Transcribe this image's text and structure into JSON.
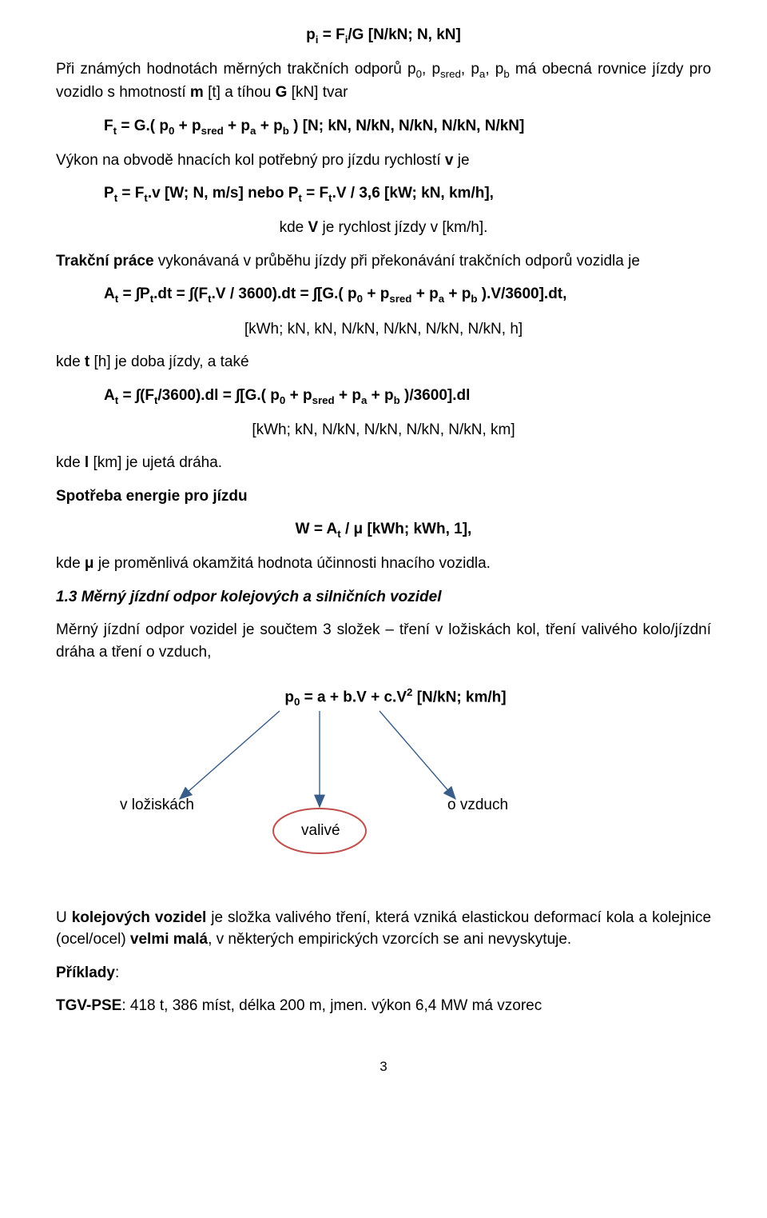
{
  "eq_top": "p<sub>i</sub> = F<sub>i</sub>/G [N/kN; N, kN]",
  "p1": "Při známých hodnotách měrných trakčních odporů p<sub>0</sub>, p<sub>sred</sub>, p<sub>a</sub>, p<sub>b</sub>  má obecná rovnice jízdy pro vozidlo s hmotností <b>m</b> [t] a tíhou <b>G</b> [kN] tvar",
  "eq_Ft": "F<sub>t</sub> = G.( p<sub>0</sub> + p<sub>sred</sub> + p<sub>a</sub> + p<sub>b</sub> ) [N; kN, N/kN, N/kN, N/kN, N/kN]",
  "p2": "Výkon na obvodě hnacích kol potřebný pro jízdu rychlostí <b>v</b> je",
  "eq_Pt": "P<sub>t</sub> = F<sub>t</sub>.v [W; N, m/s] nebo P<sub>t</sub> = F<sub>t</sub>.V / 3,6 [kW; kN, km/h],",
  "p3": "kde <b>V</b> je rychlost jízdy v [km/h].",
  "p4": "<b>Trakční práce</b> vykonávaná v průběhu jízdy při překonávání trakčních odporů vozidla je",
  "eq_At1": "A<sub>t</sub> = ∫P<sub>t</sub>.dt = ∫(F<sub>t</sub>.V / 3600).dt = ∫[G.( p<sub>0</sub> + p<sub>sred</sub> + p<sub>a</sub> + p<sub>b</sub> ).V/3600].dt,",
  "units1": "[kWh; kN, kN, N/kN, N/kN, N/kN, N/kN, h]",
  "p5": "kde <b>t</b> [h] je doba jízdy, a také",
  "eq_At2": "A<sub>t</sub> = ∫(F<sub>t</sub>/3600).dl = ∫[G.( p<sub>0</sub> + p<sub>sred</sub> + p<sub>a</sub> + p<sub>b</sub> )/3600].dl",
  "units2": "[kWh; kN, N/kN, N/kN, N/kN, N/kN, km]",
  "p6": "kde <b>l</b> [km] je ujetá dráha.",
  "sub1": "Spotřeba energie pro jízdu",
  "eq_W": "W = A<sub>t</sub> / μ [kWh; kWh, 1],",
  "p7": "kde <b>μ</b> je proměnlivá okamžitá hodnota účinnosti hnacího vozidla.",
  "section_title": "1.3 Měrný jízdní odpor kolejových a silničních vozidel",
  "p8": "Měrný jízdní odpor vozidel je součtem 3 složek – tření v ložiskách kol, tření valivého kolo/jízdní dráha a tření o vzduch,",
  "diag": {
    "formula": "p<sub>0</sub> = a + b.V + c.V<sup>2</sup> [N/kN; km/h]",
    "labels": {
      "left": "v ložiskách",
      "mid": "valivé",
      "right": "o vzduch"
    },
    "colors": {
      "arrow": "#385d8a",
      "ellipse_stroke": "#c0504d",
      "ellipse_fill": "none"
    }
  },
  "p9": "U <b>kolejových vozidel</b> je složka valivého tření, která vzniká elastickou deformací kola a kolejnice (ocel/ocel) <b>velmi malá</b>, v některých empirických vzorcích se ani nevyskytuje.",
  "examples_label": "Příklady",
  "ex1": "<b>TGV-PSE</b>: 418 t, 386 míst, délka 200 m, jmen. výkon 6,4 MW má vzorec",
  "page_number": "3"
}
